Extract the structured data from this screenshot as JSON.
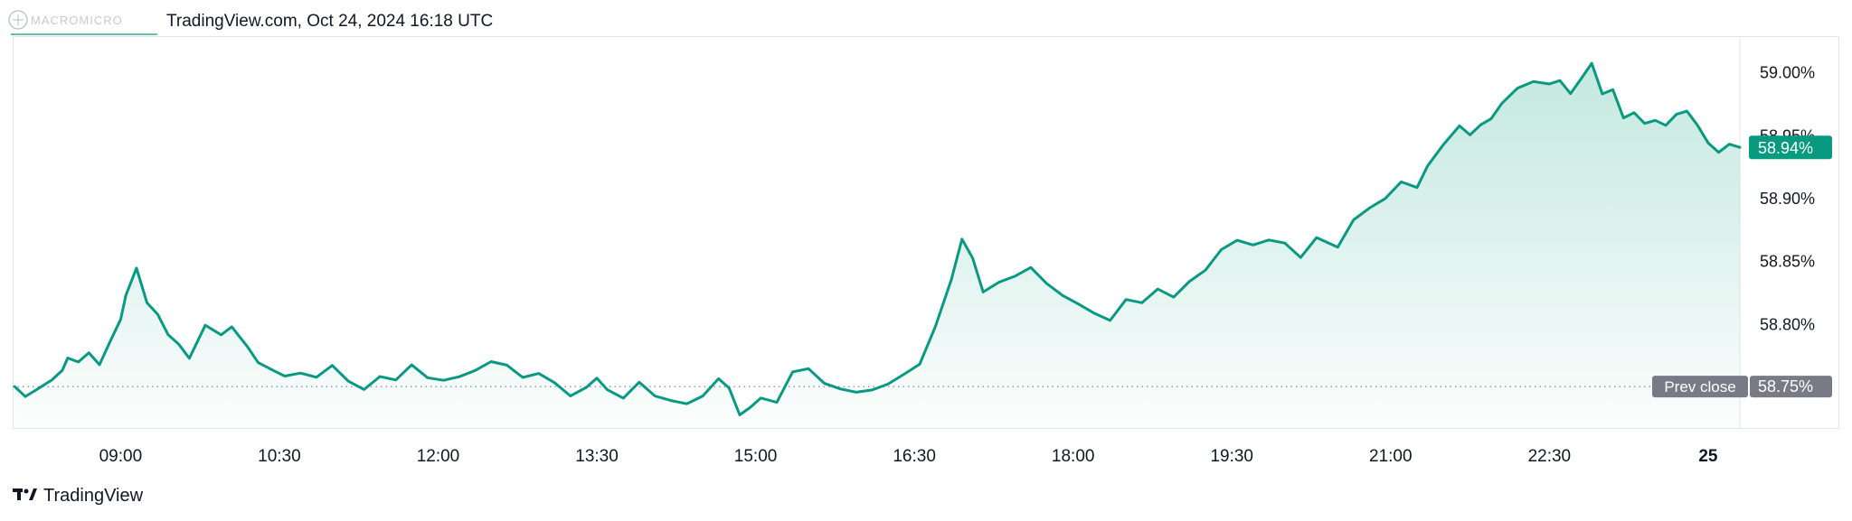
{
  "header": {
    "watermark_text": "MACROMICRO",
    "source_line": "TradingView.com, Oct 24, 2024 16:18 UTC"
  },
  "footer": {
    "brand": "TradingView",
    "logo_icon": "tradingview-logo-icon"
  },
  "colors": {
    "line": "#089981",
    "fill_top": "#b9e4d9",
    "badge_last": "#089981",
    "badge_prev": "#787b86",
    "prev_line": "#787b86"
  },
  "chart_data": {
    "type": "area",
    "title": "",
    "xlabel": "",
    "ylabel": "",
    "x_tick_labels": [
      "09:00",
      "10:30",
      "12:00",
      "13:30",
      "15:00",
      "16:30",
      "18:00",
      "19:30",
      "21:00",
      "22:30",
      "25"
    ],
    "x_ticks_hours": [
      9.0,
      10.5,
      12.0,
      13.5,
      15.0,
      16.5,
      18.0,
      19.5,
      21.0,
      22.5,
      24.0
    ],
    "x_range_hours": [
      7.98,
      24.3
    ],
    "y_tick_labels": [
      "59.00%",
      "58.95%",
      "58.90%",
      "58.85%",
      "58.80%"
    ],
    "y_ticks": [
      59.0,
      58.95,
      58.9,
      58.85,
      58.8
    ],
    "y_range": [
      58.72,
      59.014
    ],
    "last_value": 58.94,
    "last_label": "58.94%",
    "prev_close": 58.75,
    "prev_close_label": "58.75%",
    "prev_close_tag": "Prev close",
    "grid": false,
    "series": [
      {
        "x": [
          8.0,
          8.1,
          8.2,
          8.35,
          8.45,
          8.5,
          8.6,
          8.7,
          8.8,
          8.9,
          9.0,
          9.05,
          9.15,
          9.25,
          9.35,
          9.45,
          9.55,
          9.65,
          9.8,
          9.95,
          10.05,
          10.2,
          10.3,
          10.45,
          10.55,
          10.7,
          10.85,
          11.0,
          11.15,
          11.3,
          11.45,
          11.6,
          11.75,
          11.9,
          12.05,
          12.2,
          12.35,
          12.5,
          12.65,
          12.8,
          12.95,
          13.1,
          13.25,
          13.4,
          13.5,
          13.6,
          13.75,
          13.9,
          14.05,
          14.2,
          14.35,
          14.5,
          14.65,
          14.75,
          14.85,
          14.95,
          15.05,
          15.2,
          15.35,
          15.5,
          15.65,
          15.8,
          15.95,
          16.1,
          16.25,
          16.4,
          16.55,
          16.7,
          16.85,
          16.95,
          17.05,
          17.15,
          17.3,
          17.45,
          17.6,
          17.75,
          17.9,
          18.05,
          18.2,
          18.35,
          18.5,
          18.65,
          18.8,
          18.95,
          19.1,
          19.25,
          19.4,
          19.55,
          19.7,
          19.85,
          20.0,
          20.15,
          20.3,
          20.5,
          20.65,
          20.8,
          20.95,
          21.1,
          21.25,
          21.35,
          21.5,
          21.65,
          21.75,
          21.85,
          21.95,
          22.05,
          22.2,
          22.35,
          22.5,
          22.6,
          22.7,
          22.8,
          22.9,
          23.0,
          23.1,
          23.2,
          23.3,
          23.4,
          23.5,
          23.6,
          23.7,
          23.8,
          23.9,
          24.0,
          24.1,
          24.2,
          24.3
        ],
        "values": [
          58.75,
          58.74,
          58.745,
          58.755,
          58.765,
          58.775,
          58.77,
          58.775,
          58.765,
          58.785,
          58.805,
          58.825,
          58.845,
          58.815,
          58.805,
          58.79,
          58.785,
          58.775,
          58.8,
          58.79,
          58.795,
          58.78,
          58.77,
          58.765,
          58.76,
          58.76,
          58.755,
          58.765,
          58.755,
          58.75,
          58.76,
          58.755,
          58.765,
          58.755,
          58.755,
          58.76,
          58.765,
          58.77,
          58.765,
          58.755,
          58.76,
          58.755,
          58.745,
          58.75,
          58.755,
          58.745,
          58.74,
          58.755,
          58.745,
          58.74,
          58.735,
          58.74,
          58.755,
          58.75,
          58.73,
          58.735,
          58.74,
          58.735,
          58.76,
          58.765,
          58.755,
          58.75,
          58.745,
          58.745,
          58.75,
          58.76,
          58.77,
          58.8,
          58.835,
          58.865,
          58.85,
          58.825,
          58.835,
          58.84,
          58.845,
          58.83,
          58.82,
          58.815,
          58.81,
          58.805,
          58.82,
          58.815,
          58.825,
          58.82,
          58.835,
          58.845,
          58.86,
          58.865,
          58.86,
          58.865,
          58.865,
          58.855,
          58.87,
          58.86,
          58.88,
          58.89,
          58.9,
          58.915,
          58.91,
          58.925,
          58.94,
          58.955,
          58.95,
          58.96,
          58.965,
          58.975,
          58.985,
          58.99,
          58.99,
          58.995,
          58.985,
          58.995,
          59.005,
          58.98,
          58.985,
          58.965,
          58.97,
          58.96,
          58.96,
          58.955,
          58.965,
          58.97,
          58.96,
          58.945,
          58.935,
          58.94,
          58.94
        ]
      }
    ]
  }
}
